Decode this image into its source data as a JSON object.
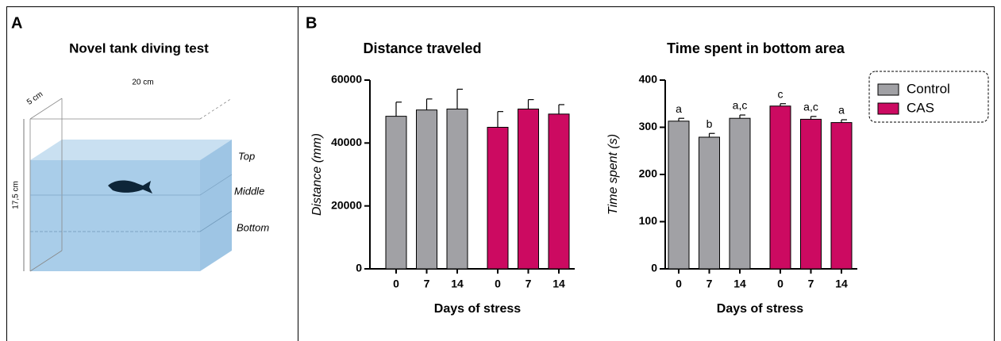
{
  "panels": {
    "a": "A",
    "b": "B"
  },
  "diagram": {
    "title": "Novel tank diving test",
    "depth": "5 cm",
    "width": "20 cm",
    "height": "17,5 cm",
    "zones": [
      "Top",
      "Middle",
      "Bottom"
    ]
  },
  "chart_data": [
    {
      "type": "bar",
      "title": "Distance traveled",
      "xlabel": "Days of stress",
      "ylabel": "Distance (mm)",
      "categories": [
        "0",
        "7",
        "14"
      ],
      "series": [
        {
          "color": "#a1a1a5",
          "values": [
            48500,
            50500,
            50800
          ],
          "errors": [
            4500,
            3500,
            6300
          ]
        },
        {
          "color": "#cc0a61",
          "values": [
            45000,
            50800,
            49200
          ],
          "errors": [
            5000,
            3000,
            3000
          ]
        }
      ],
      "ylim": [
        0,
        60000
      ],
      "yticks": [
        0,
        20000,
        40000,
        60000
      ],
      "legend": false
    },
    {
      "type": "bar",
      "title": "Time spent in bottom area",
      "xlabel": "Days of stress",
      "ylabel": "Time spent (s)",
      "categories": [
        "0",
        "7",
        "14"
      ],
      "series": [
        {
          "name": "Control",
          "color": "#a1a1a5",
          "values": [
            313,
            279,
            319
          ],
          "errors": [
            6,
            8,
            7
          ],
          "annotations": [
            "a",
            "b",
            "a,c"
          ]
        },
        {
          "name": "CAS",
          "color": "#cc0a61",
          "values": [
            345,
            317,
            310
          ],
          "errors": [
            5,
            6,
            6
          ],
          "annotations": [
            "c",
            "a,c",
            "a"
          ]
        }
      ],
      "ylim": [
        0,
        400
      ],
      "yticks": [
        0,
        100,
        200,
        300,
        400
      ],
      "legend": true
    }
  ]
}
